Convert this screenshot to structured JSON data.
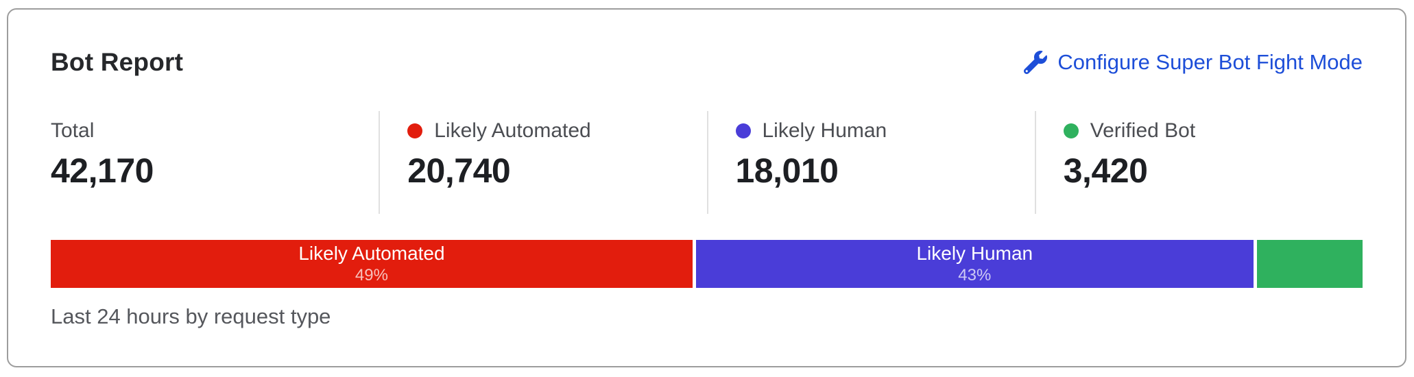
{
  "card": {
    "title": "Bot Report",
    "action": {
      "label": "Configure Super Bot Fight Mode",
      "icon": "wrench-icon",
      "color": "#1d4ed8"
    },
    "stats": [
      {
        "label": "Total",
        "value": "42,170"
      },
      {
        "label": "Likely Automated",
        "value": "20,740",
        "dot_color": "#e21d0d"
      },
      {
        "label": "Likely Human",
        "value": "18,010",
        "dot_color": "#4a3dd8"
      },
      {
        "label": "Verified Bot",
        "value": "3,420",
        "dot_color": "#2fb15e"
      }
    ],
    "footnote": "Last 24 hours by request type"
  },
  "chart_data": {
    "type": "bar",
    "variant": "horizontal-stacked-single-bar",
    "title": "Bot Report",
    "categories": [
      "Likely Automated",
      "Likely Human",
      "Verified Bot"
    ],
    "values": [
      20740,
      18010,
      3420
    ],
    "total": 42170,
    "segments": [
      {
        "name": "Likely Automated",
        "value": 20740,
        "percent": 49.18,
        "label": "Likely Automated",
        "percent_label": "49%",
        "color": "#e21d0d"
      },
      {
        "name": "Likely Human",
        "value": 18010,
        "percent": 42.71,
        "label": "Likely Human",
        "percent_label": "43%",
        "color": "#4a3dd8"
      },
      {
        "name": "Verified Bot",
        "value": 3420,
        "percent": 8.11,
        "label": "",
        "percent_label": "",
        "color": "#2fb15e"
      }
    ],
    "note": "Last 24 hours by request type",
    "legend_position": "top",
    "grid": false
  }
}
